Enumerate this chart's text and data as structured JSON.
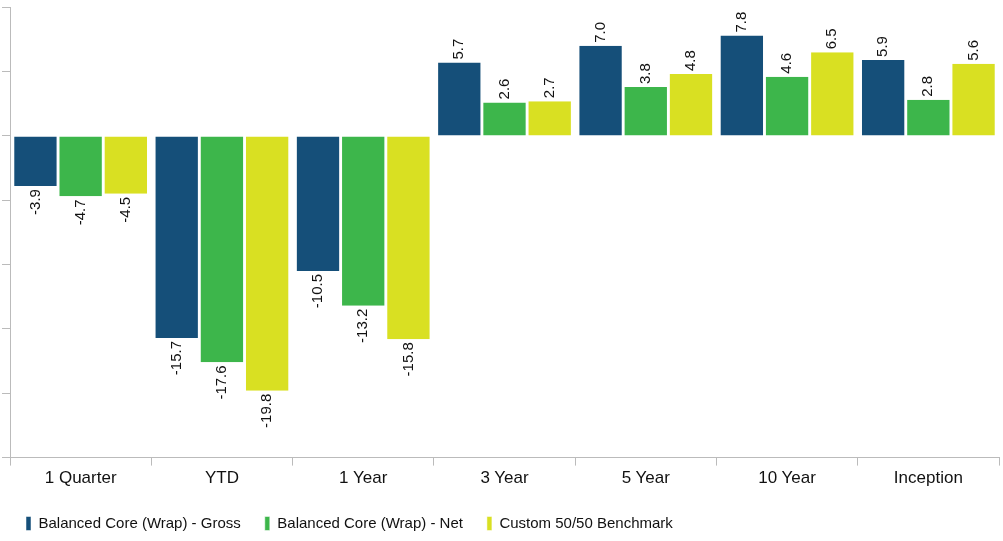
{
  "chart_data": {
    "type": "bar",
    "categories": [
      "1 Quarter",
      "YTD",
      "1 Year",
      "3 Year",
      "5 Year",
      "10 Year",
      "Inception"
    ],
    "series": [
      {
        "name": "Balanced Core (Wrap) - Gross",
        "color": "#154f79",
        "values": [
          -3.9,
          -15.7,
          -10.5,
          5.7,
          7.0,
          7.8,
          5.9
        ],
        "value_labels": [
          "-3.9",
          "-15.7",
          "-10.5",
          "5.7",
          "7.0",
          "7.8",
          "5.9"
        ]
      },
      {
        "name": "Balanced Core (Wrap) - Net",
        "color": "#3db64b",
        "values": [
          -4.7,
          -17.6,
          -13.2,
          2.6,
          3.8,
          4.6,
          2.8
        ],
        "value_labels": [
          "-4.7",
          "-17.6",
          "-13.2",
          "2.6",
          "3.8",
          "4.6",
          "2.8"
        ]
      },
      {
        "name": "Custom 50/50 Benchmark",
        "color": "#d9e022",
        "values": [
          -4.5,
          -19.8,
          -15.8,
          2.7,
          4.8,
          6.5,
          5.6
        ],
        "value_labels": [
          "-4.5",
          "-19.8",
          "-15.8",
          "2.7",
          "4.8",
          "6.5",
          "5.6"
        ]
      }
    ],
    "tick_labels": "x",
    "grid": false,
    "legend": "bottom"
  }
}
